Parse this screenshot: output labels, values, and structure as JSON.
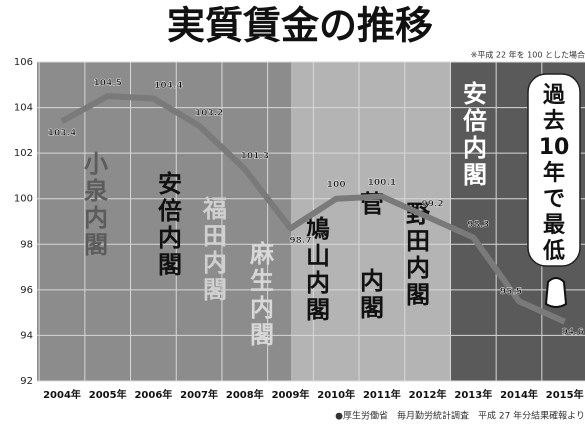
{
  "chart_data": {
    "type": "line",
    "title": "実質賃金の推移",
    "subtitle": "※平成 22 年を 100 とした場合",
    "source": "●厚生労働省　毎月勤労統計調査　平成 27 年分結果確報より",
    "categories": [
      "2004年",
      "2005年",
      "2006年",
      "2007年",
      "2008年",
      "2009年",
      "2010年",
      "2011年",
      "2012年",
      "2013年",
      "2014年",
      "2015年"
    ],
    "values": [
      103.4,
      104.5,
      104.4,
      103.2,
      101.3,
      98.7,
      100,
      100.1,
      99.2,
      98.3,
      95.5,
      94.6
    ],
    "color": "#7a7a7a",
    "ylim": [
      92,
      106
    ],
    "yticks": [
      92,
      94,
      96,
      98,
      100,
      102,
      104,
      106
    ],
    "grid": true,
    "annotations": [
      "小泉内閣",
      "安倍内閣",
      "福田内閣",
      "麻生内閣",
      "鳩山内閣",
      "菅内閣",
      "野田内閣",
      "安倍内閣",
      "過去10年で最低"
    ]
  }
}
